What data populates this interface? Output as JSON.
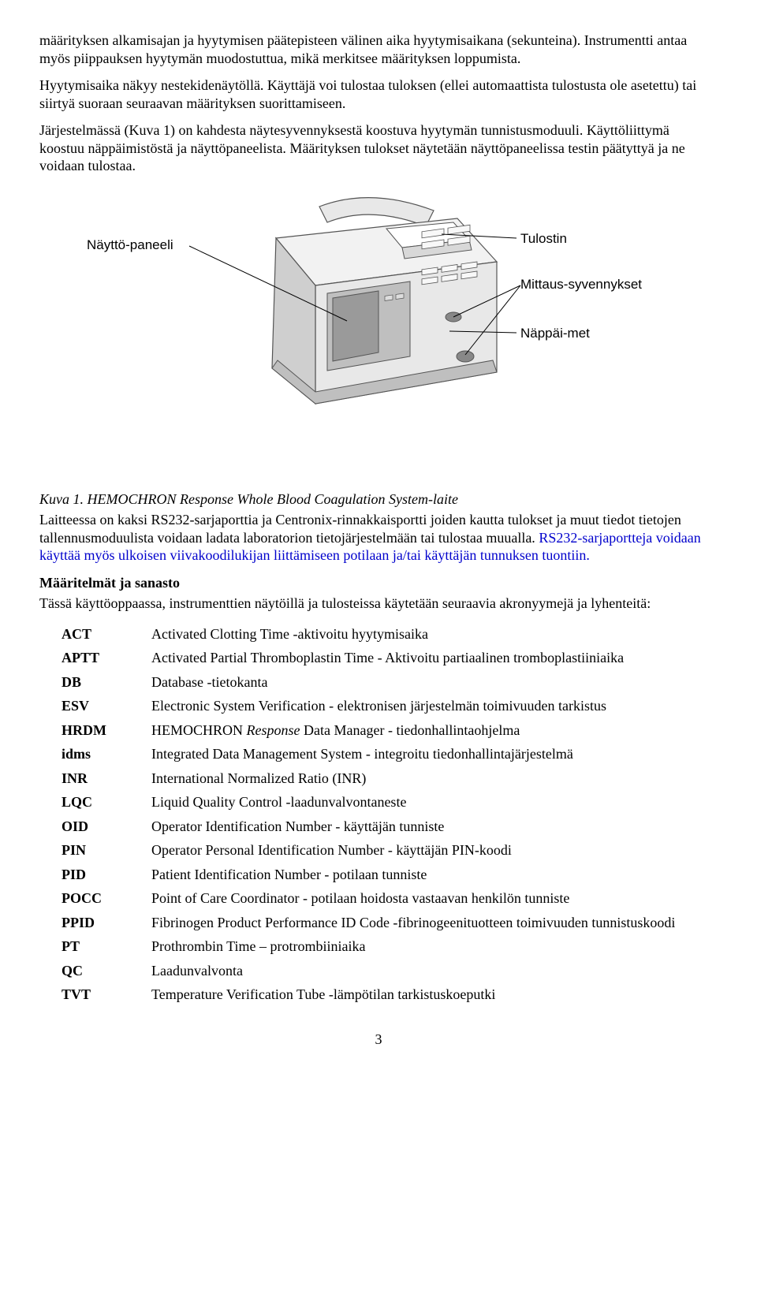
{
  "para1": "määrityksen alkamisajan ja hyytymisen päätepisteen välinen aika hyytymisaikana (sekunteina). Instrumentti antaa myös piippauksen hyytymän muodostuttua, mikä merkitsee määrityksen loppumista.",
  "para2": "Hyytymisaika näkyy nestekidenäytöllä. Käyttäjä voi tulostaa tuloksen (ellei automaattista tulostusta ole asetettu) tai siirtyä suoraan seuraavan määrityksen suorittamiseen.",
  "para3": "Järjestelmässä (Kuva 1) on kahdesta näytesyvennyksestä koostuva hyytymän tunnistusmoduuli. Käyttöliittymä koostuu näppäimistöstä ja näyttöpaneelista. Määrityksen tulokset näytetään näyttöpaneelissa testin päätyttyä ja ne voidaan tulostaa.",
  "callouts": {
    "display": "Näyttö-paneeli",
    "printer": "Tulostin",
    "wells": "Mittaus-syvennykset",
    "keypad": "Näppäi-met"
  },
  "figcaption_prefix": "Kuva 1. ",
  "figcaption_italic": "HEMOCHRON Response Whole Blood Coagulation System-laite",
  "para4_a": "Laitteessa on kaksi RS232-sarjaporttia ja Centronix-rinnakkaisportti joiden kautta tulokset ja muut tiedot tietojen tallennusmoduulista voidaan ladata laboratorion tietojärjestelmään tai tulostaa muualla. ",
  "para4_b": "RS232-sarjaportteja voidaan käyttää myös ulkoisen viivakoodilukijan liittämiseen potilaan ja/tai käyttäjän tunnuksen tuontiin.",
  "section_title": "Määritelmät ja sanasto",
  "para5": "Tässä käyttöoppaassa, instrumenttien näytöillä ja tulosteissa käytetään seuraavia akronyymejä ja lyhenteitä:",
  "glossary": [
    {
      "abbr": "ACT",
      "def": "Activated Clotting Time -aktivoitu hyytymisaika"
    },
    {
      "abbr": "APTT",
      "def": "Activated Partial Thromboplastin Time - Aktivoitu partiaalinen tromboplastiiniaika"
    },
    {
      "abbr": "DB",
      "def": "Database -tietokanta"
    },
    {
      "abbr": "ESV",
      "def": "Electronic System Verification - elektronisen järjestelmän toimivuuden tarkistus"
    },
    {
      "abbr": "HRDM",
      "def_pre": "HEMOCHRON ",
      "def_italic": "Response",
      "def_post": " Data Manager - tiedonhallintaohjelma"
    },
    {
      "abbr": "idms",
      "def": "Integrated Data Management System - integroitu tiedonhallintajärjestelmä"
    },
    {
      "abbr": "INR",
      "def": "International Normalized Ratio (INR)"
    },
    {
      "abbr": "LQC",
      "def": "Liquid Quality Control -laadunvalvontaneste"
    },
    {
      "abbr": "OID",
      "def": "Operator Identification Number - käyttäjän tunniste"
    },
    {
      "abbr": "PIN",
      "def": "Operator Personal Identification Number - käyttäjän PIN-koodi"
    },
    {
      "abbr": "PID",
      "def": "Patient Identification Number - potilaan tunniste"
    },
    {
      "abbr": "POCC",
      "def": "Point of Care Coordinator - potilaan hoidosta vastaavan henkilön tunniste"
    },
    {
      "abbr": "PPID",
      "def": "Fibrinogen Product Performance ID Code -fibrinogeenituotteen toimivuuden tunnistuskoodi"
    },
    {
      "abbr": "PT",
      "def": "Prothrombin Time – protrombiiniaika"
    },
    {
      "abbr": "QC",
      "def": "Laadunvalvonta"
    },
    {
      "abbr": "TVT",
      "def": "Temperature Verification Tube -lämpötilan tarkistuskoeputki"
    }
  ],
  "page_number": "3",
  "svg": {
    "stroke": "#555555",
    "fill_light": "#f2f2f2",
    "fill_mid": "#d8d8d8",
    "fill_dark": "#bfbfbf",
    "fill_screen": "#9a9a9a"
  }
}
